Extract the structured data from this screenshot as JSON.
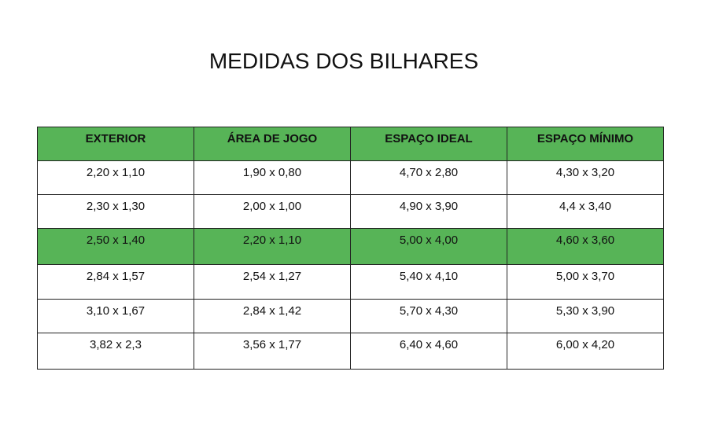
{
  "title": "MEDIDAS DOS BILHARES",
  "colors": {
    "header_bg": "#57b457",
    "highlight_row_bg": "#57b457"
  },
  "table": {
    "headers": [
      "EXTERIOR",
      "ÁREA DE JOGO",
      "ESPAÇO IDEAL",
      "ESPAÇO MÍNIMO"
    ],
    "highlighted_row": 2,
    "rows": [
      [
        "2,20 x 1,10",
        "1,90 x 0,80",
        "4,70 x 2,80",
        "4,30 x 3,20"
      ],
      [
        "2,30 x 1,30",
        "2,00 x 1,00",
        "4,90 x 3,90",
        "4,4 x 3,40"
      ],
      [
        "2,50 x 1,40",
        "2,20 x 1,10",
        "5,00 x 4,00",
        "4,60 x 3,60"
      ],
      [
        "2,84 x 1,57",
        "2,54 x 1,27",
        "5,40 x 4,10",
        "5,00 x 3,70"
      ],
      [
        "3,10 x 1,67",
        "2,84 x 1,42",
        "5,70 x 4,30",
        "5,30 x 3,90"
      ],
      [
        "3,82 x 2,3",
        "3,56 x 1,77",
        "6,40 x 4,60",
        "6,00 x 4,20"
      ]
    ]
  }
}
